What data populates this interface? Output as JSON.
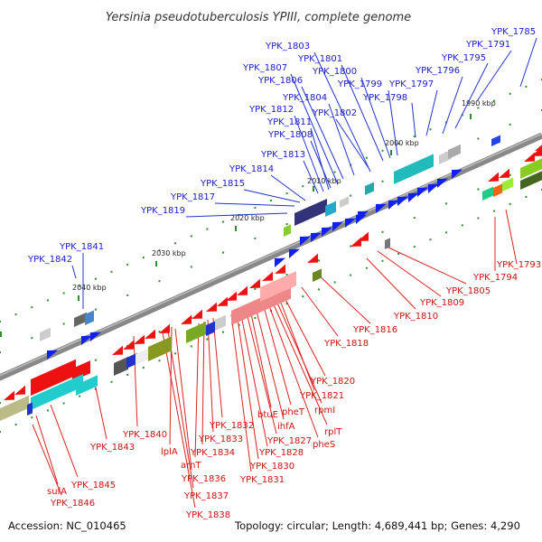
{
  "title": "Yersinia pseudotuberculosis YPIII, complete genome",
  "footer": {
    "accession": "Accession: NC_010465",
    "summary": "Topology: circular; Length: 4,689,441 bp; Genes: 4,290"
  },
  "colors": {
    "forward_label": "#1a1acc",
    "reverse_label": "#cc1111",
    "backbone": "#777777"
  },
  "scale_ticks": [
    "1990 kbp",
    "2000 kbp",
    "2010 kbp",
    "2020 kbp",
    "2030 kbp",
    "2040 kbp"
  ],
  "forward_genes": [
    "YPK_1785",
    "YPK_1791",
    "YPK_1795",
    "YPK_1796",
    "YPK_1797",
    "YPK_1798",
    "YPK_1799",
    "YPK_1800",
    "YPK_1801",
    "YPK_1802",
    "YPK_1803",
    "YPK_1804",
    "YPK_1806",
    "YPK_1807",
    "YPK_1808",
    "YPK_1811",
    "YPK_1812",
    "YPK_1813",
    "YPK_1814",
    "YPK_1815",
    "YPK_1817",
    "YPK_1819",
    "YPK_1841",
    "YPK_1842"
  ],
  "reverse_genes": [
    "YPK_1793",
    "YPK_1794",
    "YPK_1805",
    "YPK_1809",
    "YPK_1810",
    "YPK_1816",
    "YPK_1818",
    "YPK_1820",
    "YPK_1821",
    "rpmI",
    "rplT",
    "pheS",
    "pheT",
    "ihfA",
    "btuE",
    "YPK_1827",
    "YPK_1828",
    "YPK_1830",
    "YPK_1831",
    "YPK_1832",
    "YPK_1833",
    "YPK_1834",
    "arnT",
    "lplA",
    "YPK_1836",
    "YPK_1837",
    "YPK_1838",
    "YPK_1840",
    "YPK_1843",
    "YPK_1845",
    "sufA",
    "YPK_1846"
  ]
}
